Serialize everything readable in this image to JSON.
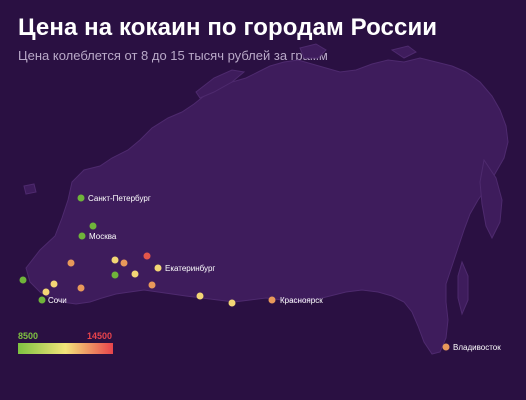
{
  "header": {
    "title": "Цена на кокаин по городам России",
    "subtitle": "Цена колеблется от 8 до 15 тысяч рублей за грамм"
  },
  "colors": {
    "background": "#2a1042",
    "land": "#3e1c5c",
    "land_stroke": "#4e2a6e",
    "green": "#6fb43a",
    "yellow": "#f3d675",
    "orange": "#e8995a",
    "red": "#e4564a"
  },
  "legend": {
    "min_label": "8500",
    "max_label": "14500",
    "min_color": "#7ec241",
    "mid_color": "#f3e47a",
    "max_color": "#e8434c"
  },
  "labels": {
    "spb": "Санкт-Петербург",
    "moscow": "Москва",
    "ekb": "Екатеринбург",
    "sochi": "Сочи",
    "krasnoyarsk": "Красноярск",
    "vladivostok": "Владивосток"
  }
}
